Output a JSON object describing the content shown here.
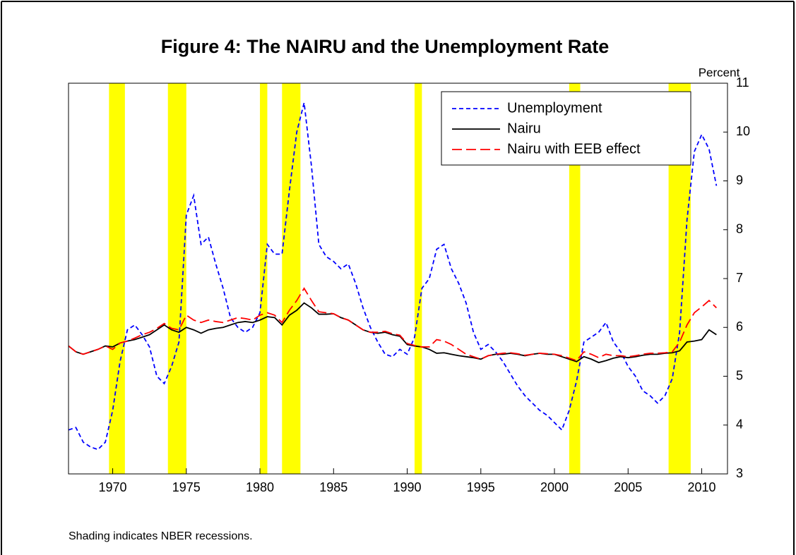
{
  "chart_data": {
    "type": "line",
    "title": "Figure 4:  The NAIRU and the Unemployment Rate",
    "y_label": "Percent",
    "note": "Shading indicates NBER recessions.",
    "xlim": [
      1967,
      2011.75
    ],
    "xticks": [
      1970,
      1975,
      1980,
      1985,
      1990,
      1995,
      2000,
      2005,
      2010
    ],
    "ylim": [
      3,
      11
    ],
    "yticks": [
      3,
      4,
      5,
      6,
      7,
      8,
      9,
      10,
      11
    ],
    "recession_color": "#ffff00",
    "recessions": [
      [
        1969.75,
        1970.83
      ],
      [
        1973.75,
        1975.0
      ],
      [
        1980.0,
        1980.5
      ],
      [
        1981.5,
        1982.75
      ],
      [
        1990.5,
        1991.0
      ],
      [
        2001.0,
        2001.75
      ],
      [
        2007.75,
        2009.25
      ]
    ],
    "x": [
      1967,
      1967.5,
      1968,
      1968.5,
      1969,
      1969.5,
      1970,
      1970.5,
      1971,
      1971.5,
      1972,
      1972.5,
      1973,
      1973.5,
      1974,
      1974.5,
      1975,
      1975.5,
      1976,
      1976.5,
      1977,
      1977.5,
      1978,
      1978.5,
      1979,
      1979.5,
      1980,
      1980.5,
      1981,
      1981.5,
      1982,
      1982.5,
      1983,
      1983.5,
      1984,
      1984.5,
      1985,
      1985.5,
      1986,
      1986.5,
      1987,
      1987.5,
      1988,
      1988.5,
      1989,
      1989.5,
      1990,
      1990.5,
      1991,
      1991.5,
      1992,
      1992.5,
      1993,
      1993.5,
      1994,
      1994.5,
      1995,
      1995.5,
      1996,
      1996.5,
      1997,
      1997.5,
      1998,
      1998.5,
      1999,
      1999.5,
      2000,
      2000.5,
      2001,
      2001.5,
      2002,
      2002.5,
      2003,
      2003.5,
      2004,
      2004.5,
      2005,
      2005.5,
      2006,
      2006.5,
      2007,
      2007.5,
      2008,
      2008.5,
      2009,
      2009.5,
      2010,
      2010.5,
      2011
    ],
    "series": [
      {
        "name": "Unemployment",
        "color": "#0000ff",
        "dash": "6 4",
        "values": [
          3.9,
          3.95,
          3.65,
          3.55,
          3.5,
          3.65,
          4.3,
          5.3,
          5.95,
          6.05,
          5.85,
          5.6,
          5.0,
          4.85,
          5.2,
          5.7,
          8.3,
          8.7,
          7.7,
          7.85,
          7.3,
          6.8,
          6.2,
          6.0,
          5.9,
          6.0,
          6.3,
          7.7,
          7.5,
          7.5,
          8.8,
          10.0,
          10.6,
          9.3,
          7.7,
          7.45,
          7.35,
          7.2,
          7.3,
          6.9,
          6.4,
          6.0,
          5.7,
          5.45,
          5.4,
          5.55,
          5.45,
          5.8,
          6.8,
          7.0,
          7.6,
          7.7,
          7.2,
          6.9,
          6.5,
          5.9,
          5.55,
          5.65,
          5.5,
          5.3,
          5.05,
          4.8,
          4.6,
          4.45,
          4.3,
          4.2,
          4.05,
          3.9,
          4.3,
          4.9,
          5.7,
          5.8,
          5.9,
          6.1,
          5.7,
          5.5,
          5.2,
          5.0,
          4.7,
          4.6,
          4.45,
          4.6,
          4.95,
          5.9,
          8.2,
          9.6,
          9.95,
          9.65,
          8.9
        ]
      },
      {
        "name": "Nairu",
        "color": "#000000",
        "dash": "none",
        "values": [
          5.62,
          5.5,
          5.45,
          5.5,
          5.55,
          5.62,
          5.6,
          5.68,
          5.72,
          5.75,
          5.8,
          5.85,
          5.95,
          6.05,
          5.95,
          5.9,
          6.0,
          5.95,
          5.88,
          5.95,
          5.98,
          6.0,
          6.05,
          6.1,
          6.12,
          6.1,
          6.15,
          6.22,
          6.2,
          6.05,
          6.25,
          6.35,
          6.5,
          6.4,
          6.27,
          6.27,
          6.28,
          6.2,
          6.15,
          6.05,
          5.95,
          5.9,
          5.88,
          5.9,
          5.85,
          5.82,
          5.65,
          5.62,
          5.6,
          5.55,
          5.47,
          5.48,
          5.45,
          5.42,
          5.4,
          5.38,
          5.35,
          5.42,
          5.45,
          5.45,
          5.47,
          5.45,
          5.42,
          5.45,
          5.47,
          5.45,
          5.45,
          5.4,
          5.35,
          5.3,
          5.4,
          5.35,
          5.28,
          5.32,
          5.37,
          5.4,
          5.38,
          5.4,
          5.43,
          5.45,
          5.45,
          5.47,
          5.48,
          5.52,
          5.7,
          5.72,
          5.75,
          5.95,
          5.85
        ]
      },
      {
        "name": "Nairu with EEB effect",
        "color": "#ff0000",
        "dash": "14 6",
        "values": [
          5.62,
          5.5,
          5.45,
          5.5,
          5.55,
          5.62,
          5.55,
          5.68,
          5.72,
          5.78,
          5.85,
          5.9,
          5.98,
          6.08,
          5.98,
          5.95,
          6.25,
          6.15,
          6.1,
          6.15,
          6.12,
          6.1,
          6.15,
          6.2,
          6.18,
          6.15,
          6.25,
          6.3,
          6.25,
          6.1,
          6.35,
          6.55,
          6.8,
          6.55,
          6.32,
          6.3,
          6.28,
          6.2,
          6.15,
          6.05,
          5.95,
          5.9,
          5.9,
          5.92,
          5.87,
          5.84,
          5.67,
          5.63,
          5.6,
          5.6,
          5.75,
          5.72,
          5.65,
          5.55,
          5.45,
          5.4,
          5.35,
          5.42,
          5.45,
          5.47,
          5.48,
          5.46,
          5.43,
          5.45,
          5.47,
          5.46,
          5.45,
          5.42,
          5.37,
          5.32,
          5.5,
          5.45,
          5.38,
          5.45,
          5.42,
          5.42,
          5.4,
          5.42,
          5.45,
          5.47,
          5.47,
          5.48,
          5.5,
          5.7,
          6.05,
          6.3,
          6.42,
          6.55,
          6.4
        ]
      }
    ]
  }
}
